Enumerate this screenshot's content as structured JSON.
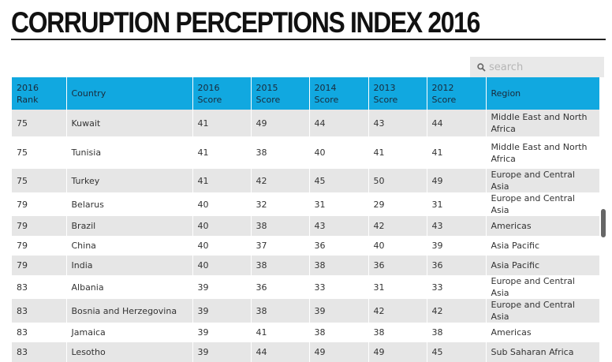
{
  "page": {
    "title": "CORRUPTION PERCEPTIONS INDEX 2016"
  },
  "search": {
    "placeholder": "search"
  },
  "table": {
    "headers": [
      [
        "2016",
        "Rank"
      ],
      [
        "Country"
      ],
      [
        "2016",
        "Score"
      ],
      [
        "2015",
        "Score"
      ],
      [
        "2014",
        "Score"
      ],
      [
        "2013",
        "Score"
      ],
      [
        "2012",
        "Score"
      ],
      [
        "Region"
      ]
    ],
    "rows": [
      [
        "75",
        "Kuwait",
        "41",
        "49",
        "44",
        "43",
        "44",
        "Middle East and North Africa"
      ],
      [
        "75",
        "Tunisia",
        "41",
        "38",
        "40",
        "41",
        "41",
        "Middle East and North Africa"
      ],
      [
        "75",
        "Turkey",
        "41",
        "42",
        "45",
        "50",
        "49",
        "Europe and Central Asia"
      ],
      [
        "79",
        "Belarus",
        "40",
        "32",
        "31",
        "29",
        "31",
        "Europe and Central Asia"
      ],
      [
        "79",
        "Brazil",
        "40",
        "38",
        "43",
        "42",
        "43",
        "Americas"
      ],
      [
        "79",
        "China",
        "40",
        "37",
        "36",
        "40",
        "39",
        "Asia Pacific"
      ],
      [
        "79",
        "India",
        "40",
        "38",
        "38",
        "36",
        "36",
        "Asia Pacific"
      ],
      [
        "83",
        "Albania",
        "39",
        "36",
        "33",
        "31",
        "33",
        "Europe and Central Asia"
      ],
      [
        "83",
        "Bosnia and Herzegovina",
        "39",
        "38",
        "39",
        "42",
        "42",
        "Europe and Central Asia"
      ],
      [
        "83",
        "Jamaica",
        "39",
        "41",
        "38",
        "38",
        "38",
        "Americas"
      ],
      [
        "83",
        "Lesotho",
        "39",
        "44",
        "49",
        "49",
        "45",
        "Sub Saharan Africa"
      ]
    ]
  },
  "colors": {
    "header_bg": "#11a8e0",
    "stripe": "#e6e6e6"
  }
}
